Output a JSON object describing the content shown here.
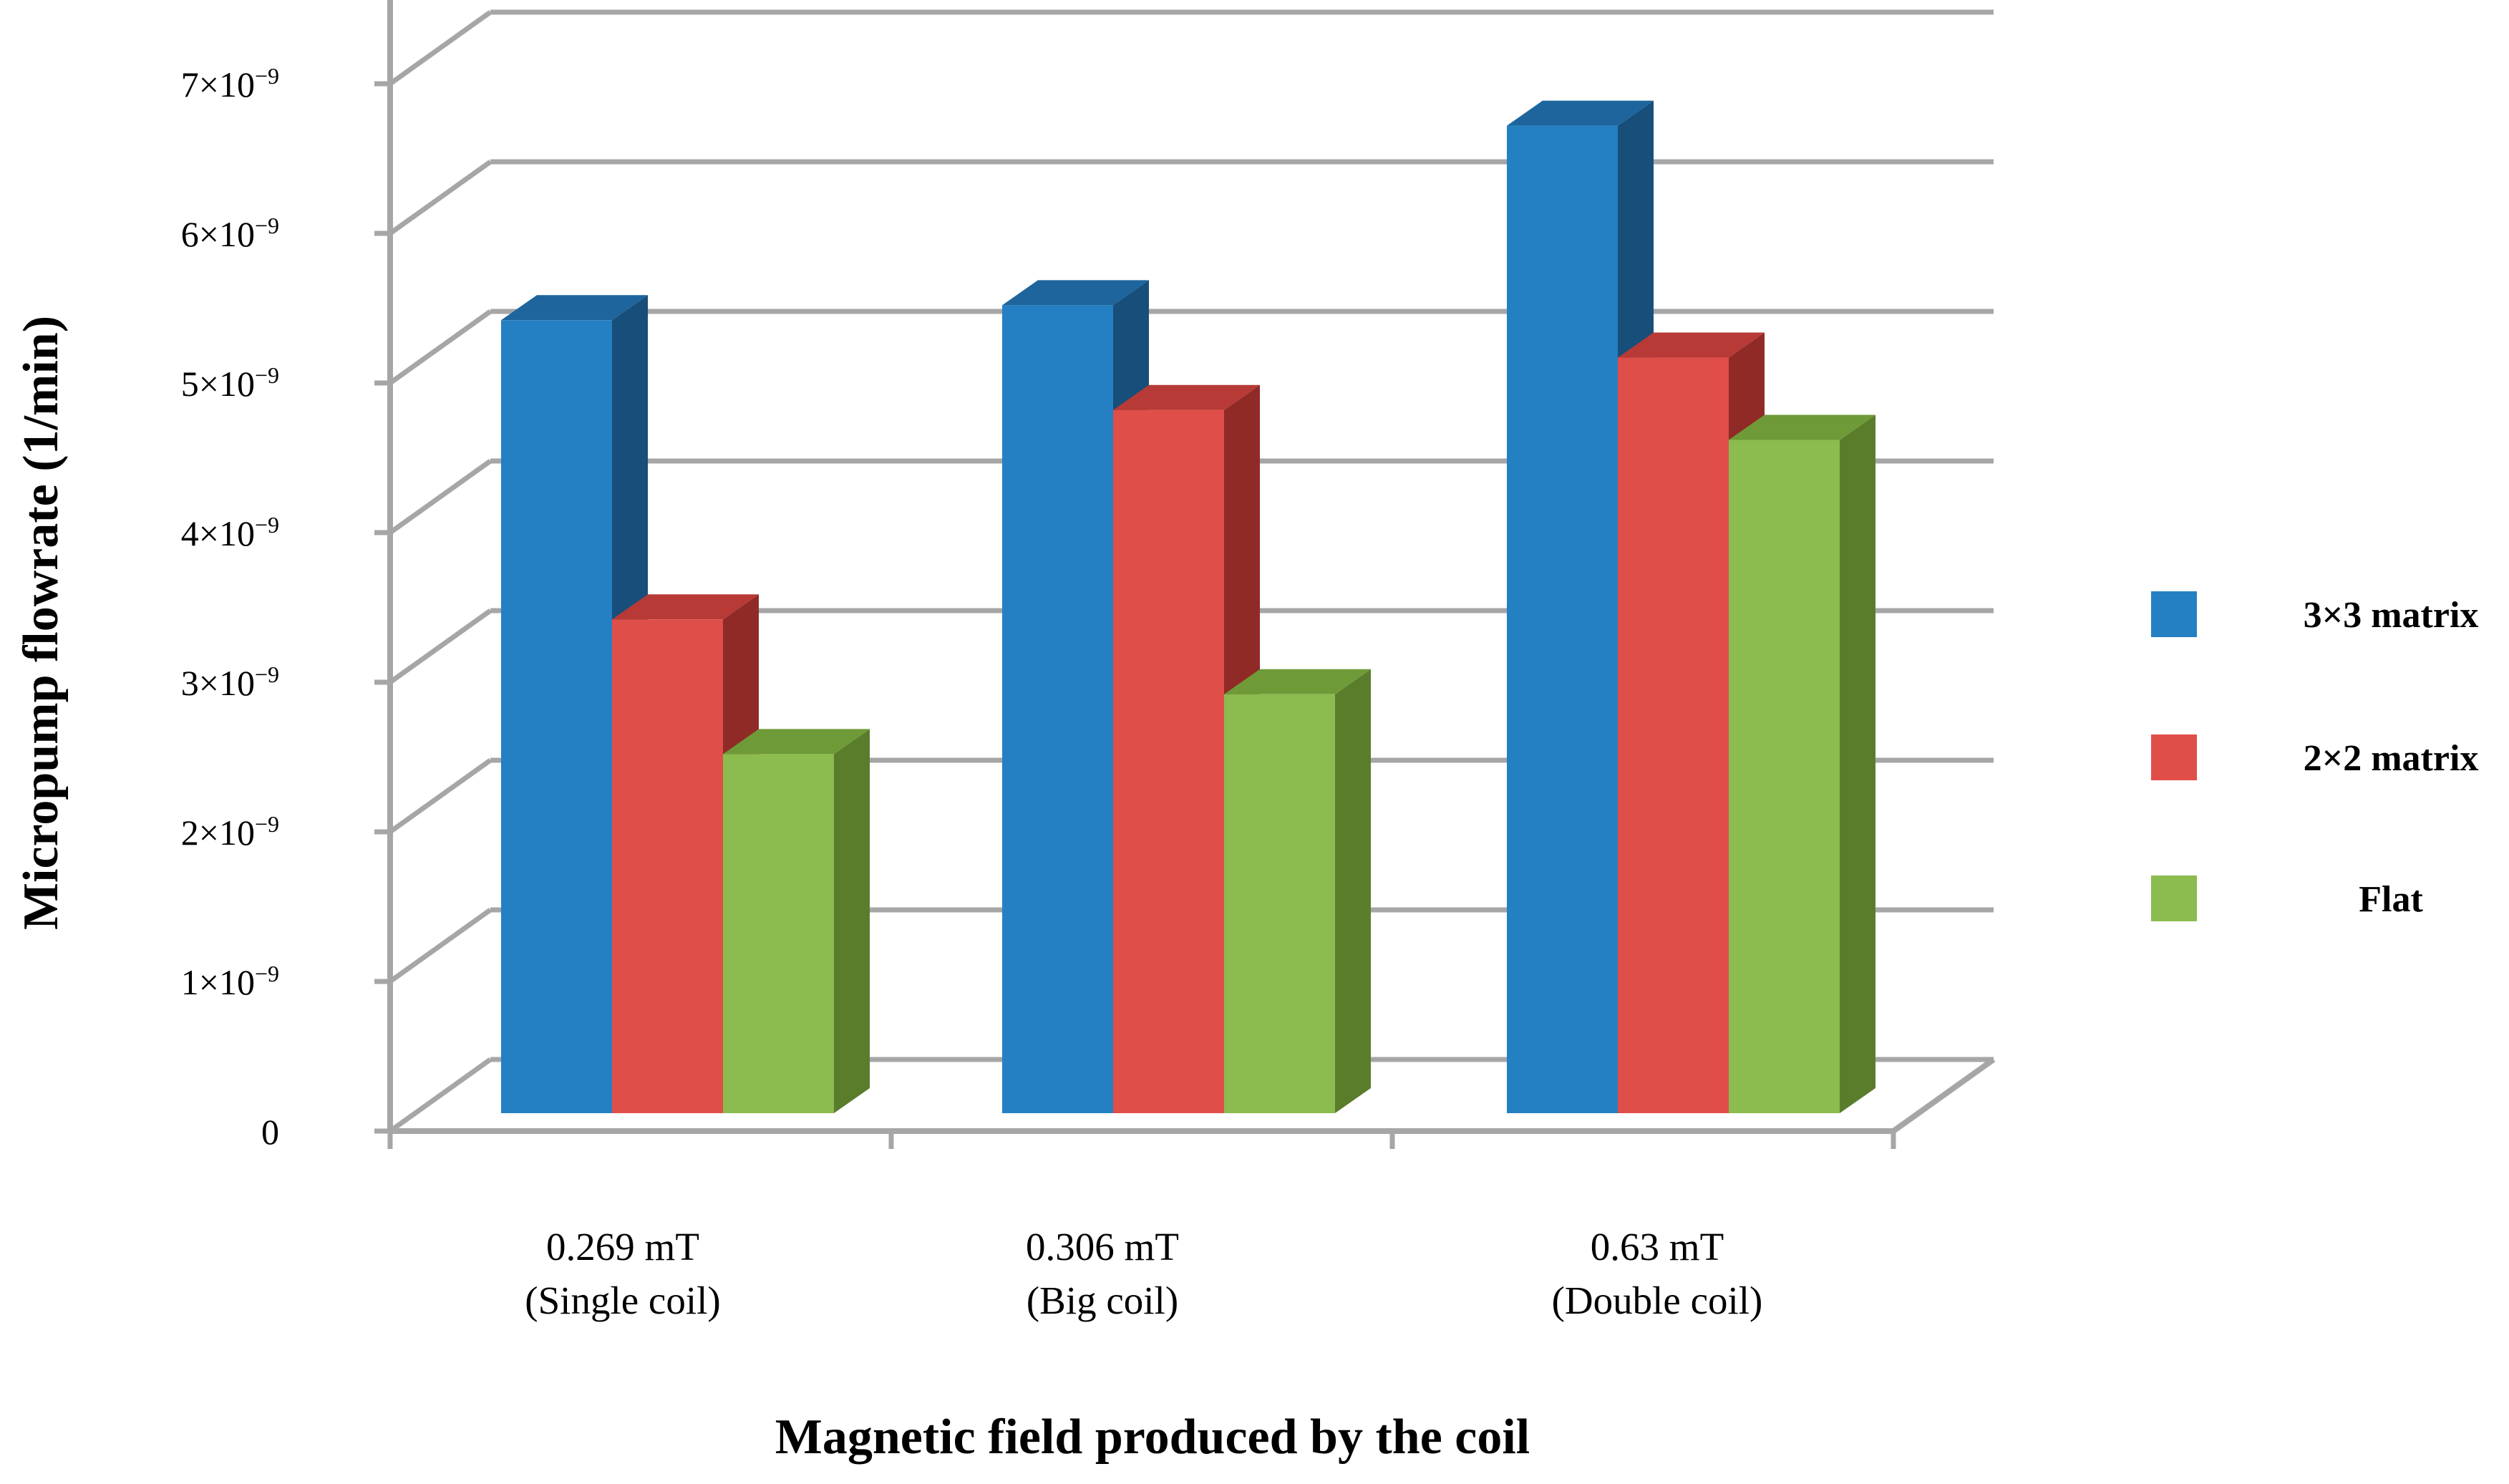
{
  "chart_data": {
    "type": "bar",
    "style": "3d-clustered-column",
    "title": "",
    "xlabel": "Magnetic field produced by the coil",
    "ylabel": "Micropump flowrate (1/min)",
    "ylim": [
      0,
      7e-09
    ],
    "yticks": [
      {
        "value": 0,
        "mantissa": "0",
        "exponent": ""
      },
      {
        "value": 1e-09,
        "mantissa": "1×10",
        "exponent": "−9"
      },
      {
        "value": 2e-09,
        "mantissa": "2×10",
        "exponent": "−9"
      },
      {
        "value": 3e-09,
        "mantissa": "3×10",
        "exponent": "−9"
      },
      {
        "value": 4e-09,
        "mantissa": "4×10",
        "exponent": "−9"
      },
      {
        "value": 5e-09,
        "mantissa": "5×10",
        "exponent": "−9"
      },
      {
        "value": 6e-09,
        "mantissa": "6×10",
        "exponent": "−9"
      },
      {
        "value": 7e-09,
        "mantissa": "7×10",
        "exponent": "−9"
      }
    ],
    "categories": [
      {
        "line1": "0.269 mT",
        "line2": "(Single coil)"
      },
      {
        "line1": "0.306 mT",
        "line2": "(Big coil)"
      },
      {
        "line1": "0.63 mT",
        "line2": "(Double coil)"
      }
    ],
    "series": [
      {
        "name": "3×3 matrix",
        "color": "#2580C3",
        "side": "#174E7A",
        "top": "#1D659C",
        "values": [
          5.3e-09,
          5.4e-09,
          6.6e-09
        ]
      },
      {
        "name": "2×2 matrix",
        "color": "#E04E4A",
        "side": "#902A27",
        "top": "#B73A36",
        "values": [
          3.3e-09,
          4.7e-09,
          5.05e-09
        ]
      },
      {
        "name": "Flat",
        "color": "#8CBB4F",
        "side": "#5A7D2C",
        "top": "#6F9A38",
        "values": [
          2.4e-09,
          2.8e-09,
          4.5e-09
        ]
      }
    ],
    "grid": true,
    "legend": "right"
  }
}
